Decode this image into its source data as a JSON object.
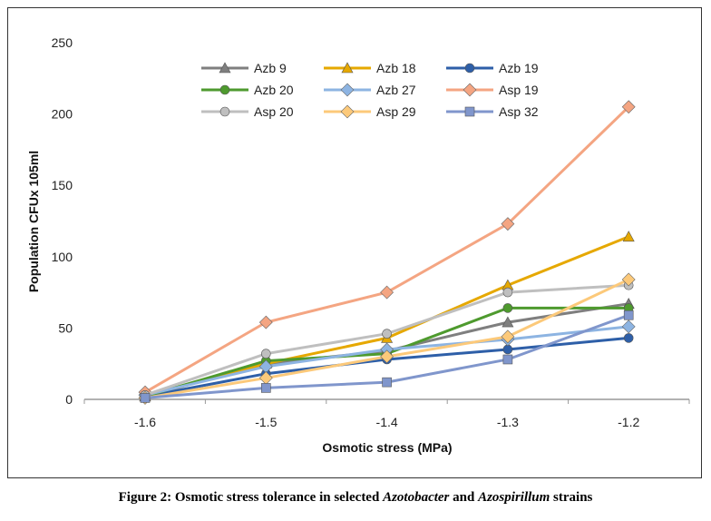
{
  "chart_data": {
    "type": "line",
    "xlabel": "Osmotic stress (MPa)",
    "ylabel": "Population CFUx 105ml",
    "x": [
      -1.6,
      -1.5,
      -1.4,
      -1.3,
      -1.2
    ],
    "x_tick_labels": [
      "-1.6",
      "-1.5",
      "-1.4",
      "-1.3",
      "-1.2"
    ],
    "ylim": [
      0,
      250
    ],
    "y_ticks": [
      0,
      50,
      100,
      150,
      200,
      250
    ],
    "grid": false,
    "legend": "top-left",
    "series": [
      {
        "name": "Azb 9",
        "marker": "triangle",
        "color": "#7f7f7f",
        "values": [
          2,
          25,
          34,
          54,
          67
        ]
      },
      {
        "name": "Azb 18",
        "marker": "triangle",
        "color": "#e6a800",
        "values": [
          2,
          25,
          43,
          80,
          114
        ]
      },
      {
        "name": "Azb 19",
        "marker": "circle",
        "color": "#2e5fa8",
        "values": [
          2,
          18,
          28,
          35,
          43
        ]
      },
      {
        "name": "Azb 20",
        "marker": "circle",
        "color": "#4e9a2e",
        "values": [
          2,
          27,
          32,
          64,
          64
        ]
      },
      {
        "name": "Azb 27",
        "marker": "diamond",
        "color": "#8db4e2",
        "values": [
          3,
          23,
          35,
          42,
          51
        ]
      },
      {
        "name": "Asp 19",
        "marker": "diamond",
        "color": "#f4a582",
        "values": [
          5,
          54,
          75,
          123,
          205
        ]
      },
      {
        "name": "Asp 20",
        "marker": "circle",
        "color": "#bfbfbf",
        "values": [
          3,
          32,
          46,
          75,
          80
        ]
      },
      {
        "name": "Asp 29",
        "marker": "diamond",
        "color": "#fcc97a",
        "values": [
          1,
          15,
          30,
          44,
          84
        ]
      },
      {
        "name": "Asp 32",
        "marker": "square",
        "color": "#8096cc",
        "values": [
          1,
          8,
          12,
          28,
          59
        ]
      }
    ]
  },
  "caption": {
    "prefix": "Figure 2: Osmotic stress tolerance in selected ",
    "genus1": "Azotobacter",
    "mid": " and ",
    "genus2": "Azospirillum",
    "suffix": " strains"
  }
}
